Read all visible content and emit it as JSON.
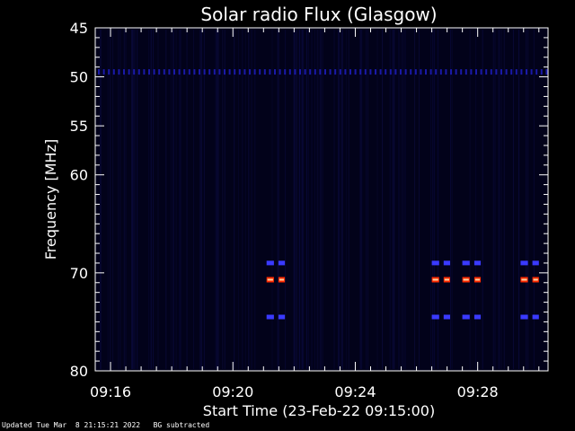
{
  "footer": {
    "updated": "Updated Tue Mar  8 21:15:21 2022",
    "note": "BG subtracted"
  },
  "chart_data": {
    "type": "heatmap",
    "title": "Solar radio Flux (Glasgow)",
    "xlabel": "Start Time (23-Feb-22 09:15:00)",
    "ylabel": "Frequency [MHz]",
    "x_unit": "minutes after 09:15:00",
    "xlim": [
      0.5,
      15.3
    ],
    "ylim": [
      45,
      80
    ],
    "y_inverted": true,
    "x_major_ticks": [
      {
        "t": 1,
        "label": "09:16"
      },
      {
        "t": 5,
        "label": "09:20"
      },
      {
        "t": 9,
        "label": "09:24"
      },
      {
        "t": 13,
        "label": "09:28"
      }
    ],
    "y_major_ticks": [
      {
        "v": 45,
        "label": "45"
      },
      {
        "v": 50,
        "label": "50"
      },
      {
        "v": 55,
        "label": "55"
      },
      {
        "v": 60,
        "label": "60"
      },
      {
        "v": 70,
        "label": "70"
      },
      {
        "v": 80,
        "label": "80"
      }
    ],
    "colors": {
      "background": "#000000",
      "plot_background": "#02021a",
      "weak": "#1a1aa8",
      "medium": "#3a3aff",
      "strong": "#ff2a00",
      "peak": "#ffd0a0"
    },
    "features": [
      {
        "name": "continuous band",
        "freq_mhz": 49.5,
        "t_start": 0.5,
        "t_end": 15.3,
        "intensity": "weak"
      },
      {
        "name": "burst",
        "t_start": 6.1,
        "t_end": 6.7,
        "freq_mhz": [
          69.0,
          70.7,
          74.5
        ],
        "intensity": [
          "medium",
          "strong",
          "medium"
        ]
      },
      {
        "name": "burst",
        "t_start": 11.5,
        "t_end": 12.1,
        "freq_mhz": [
          69.0,
          70.7,
          74.5
        ],
        "intensity": [
          "medium",
          "strong",
          "medium"
        ]
      },
      {
        "name": "burst",
        "t_start": 12.5,
        "t_end": 13.1,
        "freq_mhz": [
          69.0,
          70.7,
          74.5
        ],
        "intensity": [
          "medium",
          "strong",
          "medium"
        ]
      },
      {
        "name": "burst",
        "t_start": 14.4,
        "t_end": 15.0,
        "freq_mhz": [
          69.0,
          70.7,
          74.5
        ],
        "intensity": [
          "medium",
          "strong",
          "medium"
        ]
      }
    ]
  }
}
